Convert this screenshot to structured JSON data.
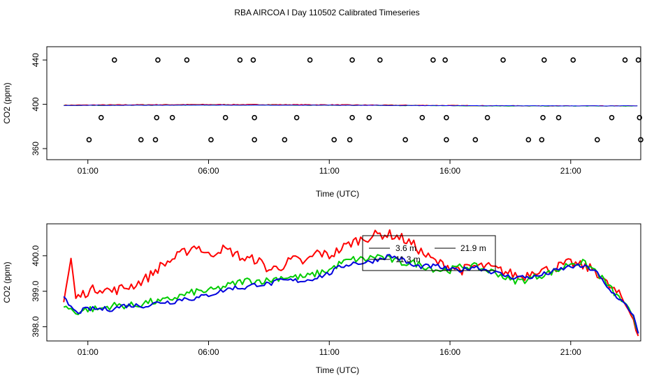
{
  "title": "RBA AIRCOA I  Day 110502  Calibrated Timeseries",
  "chart_data": [
    {
      "type": "scatter+line",
      "ylabel": "CO2 (ppm)",
      "xlabel": "Time (UTC)",
      "xlim": [
        -0.7,
        23.9
      ],
      "ylim": [
        350,
        452
      ],
      "x_ticks": [
        1,
        6,
        11,
        16,
        21
      ],
      "x_tick_labels": [
        "01:00",
        "06:00",
        "11:00",
        "16:00",
        "21:00"
      ],
      "y_ticks": [
        360,
        400,
        440
      ],
      "y_tick_labels": [
        "360",
        "400",
        "440"
      ],
      "markers": {
        "y440": [
          2.1,
          3.9,
          5.1,
          7.3,
          7.85,
          10.2,
          11.95,
          13.1,
          15.3,
          15.8,
          18.2,
          19.9,
          21.1,
          23.25,
          23.8
        ],
        "y388": [
          1.55,
          3.85,
          4.5,
          6.7,
          7.9,
          9.65,
          11.95,
          12.65,
          14.85,
          15.85,
          17.55,
          19.85,
          20.5,
          22.7,
          23.85
        ],
        "y368": [
          1.05,
          3.2,
          3.8,
          6.1,
          7.9,
          9.15,
          11.2,
          11.85,
          14.15,
          15.85,
          17.05,
          19.25,
          19.8,
          22.1,
          23.9
        ]
      },
      "series": [
        {
          "name": "red",
          "color": "#ff0000",
          "x": [
            0,
            23.8
          ],
          "y": [
            399.3,
            399.1
          ],
          "bump": 0.6
        },
        {
          "name": "green",
          "color": "#00cc00",
          "x": [
            0,
            23.8
          ],
          "y": [
            398.9,
            398.8
          ],
          "bump": 0.4
        },
        {
          "name": "blue",
          "color": "#0000ff",
          "x": [
            0,
            23.8
          ],
          "y": [
            399.0,
            398.9
          ],
          "bump": 0.3
        }
      ]
    },
    {
      "type": "line",
      "ylabel": "CO2 (ppm)",
      "xlabel": "Time (UTC)",
      "xlim": [
        -0.7,
        23.9
      ],
      "ylim": [
        397.6,
        400.9
      ],
      "x_ticks": [
        1,
        6,
        11,
        16,
        21
      ],
      "x_tick_labels": [
        "01:00",
        "06:00",
        "11:00",
        "16:00",
        "21:00"
      ],
      "y_ticks": [
        398,
        399,
        400
      ],
      "y_tick_labels": [
        "398.0",
        "399.0",
        "400.0"
      ],
      "legend": [
        "3.6 m",
        "21.9 m",
        "11.3 m"
      ],
      "series": [
        {
          "name": "21.9 m",
          "color": "#ff0000",
          "x": [
            0,
            0.3,
            0.5,
            1,
            1.5,
            2,
            2.5,
            3,
            3.5,
            4,
            4.5,
            5,
            5.5,
            6,
            6.5,
            7,
            7.5,
            8,
            8.5,
            9,
            9.5,
            10,
            10.5,
            11,
            11.5,
            12,
            12.5,
            13,
            13.5,
            14,
            14.5,
            15,
            15.5,
            16,
            16.5,
            17,
            17.5,
            18,
            18.5,
            19,
            19.5,
            20,
            20.5,
            21,
            21.5,
            22,
            22.5,
            23,
            23.3,
            23.6,
            23.8
          ],
          "y": [
            398.7,
            399.9,
            398.8,
            399.0,
            399.1,
            399.0,
            399.1,
            399.2,
            399.4,
            399.7,
            399.9,
            400.1,
            400.3,
            400.0,
            400.2,
            400.1,
            399.9,
            399.9,
            399.6,
            399.7,
            399.9,
            399.8,
            400.1,
            400.0,
            400.2,
            400.4,
            400.5,
            400.6,
            400.6,
            400.5,
            400.3,
            400.0,
            399.8,
            399.7,
            399.6,
            399.7,
            399.7,
            399.6,
            399.5,
            399.4,
            399.6,
            399.6,
            399.7,
            399.8,
            399.7,
            399.6,
            399.2,
            398.9,
            398.6,
            398.2,
            397.7
          ],
          "noise": 0.14
        },
        {
          "name": "3.6 m",
          "color": "#00cc00",
          "x": [
            0,
            0.5,
            1,
            1.5,
            2,
            2.5,
            3,
            3.5,
            4,
            4.5,
            5,
            5.5,
            6,
            6.5,
            7,
            7.5,
            8,
            8.5,
            9,
            9.5,
            10,
            10.5,
            11,
            11.5,
            12,
            12.5,
            13,
            13.5,
            14,
            14.5,
            15,
            15.5,
            16,
            16.5,
            17,
            17.5,
            18,
            18.5,
            19,
            19.5,
            20,
            20.5,
            21,
            21.5,
            22,
            22.5,
            23,
            23.3,
            23.6,
            23.8
          ],
          "y": [
            398.6,
            398.4,
            398.5,
            398.5,
            398.6,
            398.6,
            398.6,
            398.7,
            398.7,
            398.8,
            398.9,
            399.0,
            399.0,
            399.1,
            399.2,
            399.3,
            399.3,
            399.3,
            399.4,
            399.4,
            399.4,
            399.5,
            399.6,
            399.8,
            399.9,
            399.9,
            400.0,
            399.9,
            399.8,
            399.8,
            399.7,
            399.6,
            399.6,
            399.7,
            399.7,
            399.6,
            399.5,
            399.3,
            399.3,
            399.4,
            399.5,
            399.6,
            399.8,
            399.8,
            399.6,
            399.2,
            398.8,
            398.6,
            398.3,
            397.8
          ],
          "noise": 0.1
        },
        {
          "name": "11.3 m",
          "color": "#0000dd",
          "x": [
            0,
            0.5,
            1,
            1.5,
            2,
            2.5,
            3,
            3.5,
            4,
            4.5,
            5,
            5.5,
            6,
            6.5,
            7,
            7.5,
            8,
            8.5,
            9,
            9.5,
            10,
            10.5,
            11,
            11.5,
            12,
            12.5,
            13,
            13.5,
            14,
            14.5,
            15,
            15.5,
            16,
            16.5,
            17,
            17.5,
            18,
            18.5,
            19,
            19.5,
            20,
            20.5,
            21,
            21.5,
            22,
            22.5,
            23,
            23.3,
            23.6,
            23.8
          ],
          "y": [
            398.8,
            398.4,
            398.5,
            398.5,
            398.5,
            398.6,
            398.6,
            398.6,
            398.7,
            398.7,
            398.8,
            398.8,
            398.9,
            399.0,
            399.1,
            399.1,
            399.2,
            399.2,
            399.3,
            399.3,
            399.3,
            399.4,
            399.5,
            399.7,
            399.8,
            399.8,
            399.9,
            400.0,
            399.9,
            399.7,
            399.7,
            399.7,
            399.6,
            399.6,
            399.7,
            399.6,
            399.5,
            399.4,
            399.4,
            399.4,
            399.5,
            399.6,
            399.7,
            399.7,
            399.6,
            399.1,
            398.8,
            398.6,
            398.3,
            397.8
          ],
          "noise": 0.07
        }
      ]
    }
  ]
}
